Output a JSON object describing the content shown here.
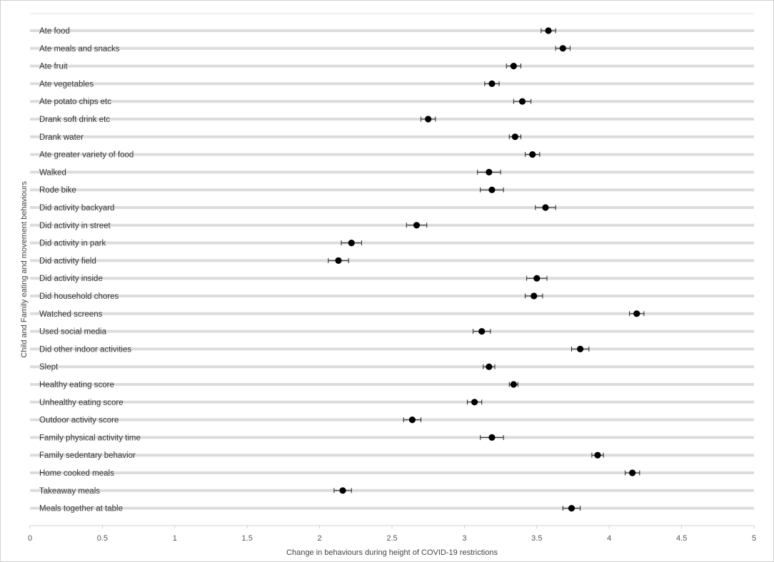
{
  "chart_data": {
    "type": "scatter",
    "orientation": "horizontal",
    "xlabel": "Change in behaviours during height of COVID-19 restrictions",
    "ylabel": "Child and Family eating and movement behaviours",
    "xlim": [
      0,
      5
    ],
    "xticks": [
      "0",
      "0.5",
      "1",
      "1.5",
      "2",
      "2.5",
      "3",
      "3.5",
      "4",
      "4.5",
      "5"
    ],
    "grid": true,
    "categories": [
      "Ate food",
      "Ate meals and snacks",
      "Ate fruit",
      "Ate vegetables",
      "Ate potato chips etc",
      "Drank soft drink etc",
      "Drank water",
      "Ate greater variety of food",
      "Walked",
      "Rode bike",
      "Did activity backyard",
      "Did activity in street",
      "Did activity in park",
      "Did activity field",
      "Did activity inside",
      "Did household chores",
      "Watched screens",
      "Used social media",
      "Did other indoor activities",
      "Slept",
      "Healthy eating score",
      "Unhealthy eating score",
      "Outdoor activity score",
      "Family physical activity time",
      "Family sedentary behavior",
      "Home cooked meals",
      "Takeaway meals",
      "Meals together at table"
    ],
    "values": [
      3.58,
      3.68,
      3.34,
      3.19,
      3.4,
      2.75,
      3.35,
      3.47,
      3.17,
      3.19,
      3.56,
      2.67,
      2.22,
      2.13,
      3.5,
      3.48,
      4.19,
      3.12,
      3.8,
      3.17,
      3.34,
      3.07,
      2.64,
      3.19,
      3.92,
      4.16,
      2.16,
      3.74
    ],
    "errors": [
      0.05,
      0.05,
      0.05,
      0.05,
      0.06,
      0.05,
      0.04,
      0.05,
      0.08,
      0.08,
      0.07,
      0.07,
      0.07,
      0.07,
      0.07,
      0.06,
      0.05,
      0.06,
      0.06,
      0.04,
      0.03,
      0.05,
      0.06,
      0.08,
      0.04,
      0.05,
      0.06,
      0.06
    ]
  }
}
